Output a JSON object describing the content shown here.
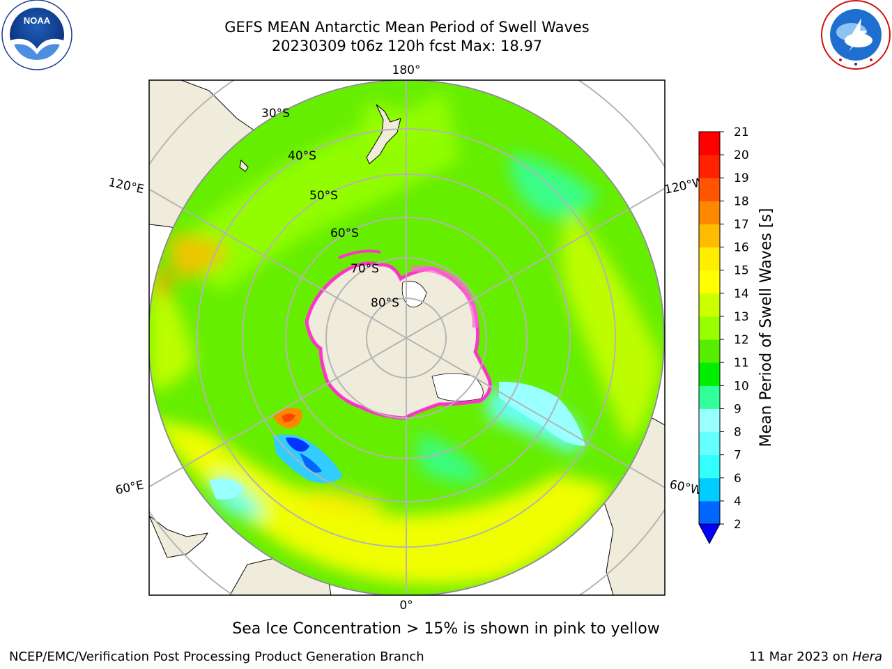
{
  "title": {
    "line1": "GEFS MEAN Antarctic Mean Period of Swell Waves",
    "line2": "20230309 t06z 120h fcst   Max: 18.97"
  },
  "logos": {
    "left": {
      "name": "noaa-logo",
      "text": "NOAA"
    },
    "right": {
      "name": "nws-logo",
      "text": "NATIONAL WEATHER SERVICE"
    }
  },
  "map": {
    "projection": "south-polar-stereographic",
    "longitude_labels": {
      "top": "180°",
      "bottom": "0°",
      "left_upper": "120°E",
      "left_lower": "60°E",
      "right_upper": "120°W",
      "right_lower": "60°W"
    },
    "latitude_labels": [
      "30°S",
      "40°S",
      "50°S",
      "60°S",
      "70°S",
      "80°S"
    ],
    "colors": {
      "land": "#efecdc",
      "grid": "#b4b4b4",
      "ice": "#ff33cc"
    }
  },
  "colorbar": {
    "label": "Mean Period of Swell Waves [s]",
    "ticks": [
      "2",
      "4",
      "6",
      "7",
      "8",
      "9",
      "10",
      "11",
      "12",
      "13",
      "14",
      "15",
      "16",
      "17",
      "18",
      "19",
      "20",
      "21"
    ],
    "colors": [
      "#0066ff",
      "#00ccff",
      "#33ffff",
      "#66ffff",
      "#99ffff",
      "#33ff99",
      "#00ee00",
      "#55ee00",
      "#99ff00",
      "#ccff00",
      "#ffff00",
      "#ffee00",
      "#ffbb00",
      "#ff8800",
      "#ff5500",
      "#ff2200",
      "#ff0000"
    ],
    "under_color": "#0000ff"
  },
  "caption": "Sea Ice Concentration > 15% is shown in pink to yellow",
  "footer": {
    "left": "NCEP/EMC/Verification Post Processing Product Generation Branch",
    "right_prefix": "11 Mar 2023 on ",
    "right_italic": "Hera"
  }
}
